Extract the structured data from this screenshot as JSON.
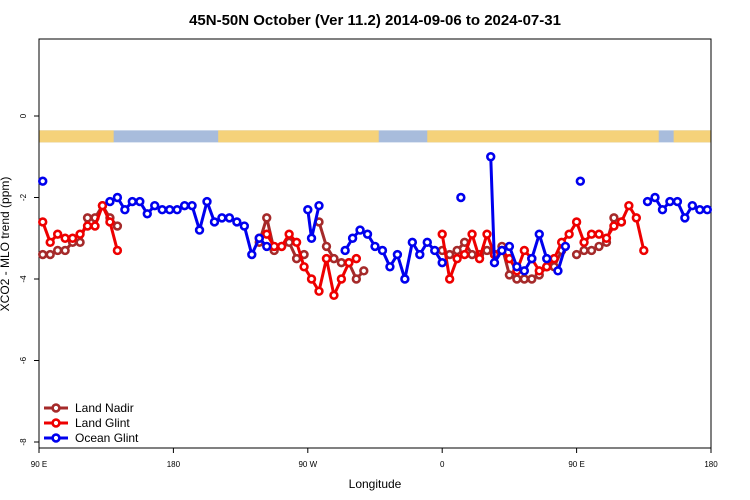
{
  "chart_data": {
    "type": "line",
    "title": "45N-50N October (Ver 11.2)   2014-09-06 to 2024-07-31",
    "xlabel": "Longitude",
    "ylabel": "XCO2 - MLO trend (ppm)",
    "xlim": [
      0,
      180
    ],
    "ylim": [
      -8,
      2
    ],
    "x_ticks": [
      {
        "x": 0,
        "label": "90 E"
      },
      {
        "x": 36,
        "label": "180"
      },
      {
        "x": 72,
        "label": "90 W"
      },
      {
        "x": 108,
        "label": "0"
      },
      {
        "x": 144,
        "label": "90 E"
      },
      {
        "x": 180,
        "label": "180"
      }
    ],
    "y_ticks": [
      -8,
      -6,
      -4,
      -2,
      0
    ],
    "grid": false,
    "legend_position": "bottom-left",
    "land_ocean_strip": {
      "y": -0.5,
      "land_color": "#f5d27a",
      "ocean_color": "#a8bcdc"
    },
    "series": [
      {
        "name": "Land Nadir",
        "color": "#a52a2a",
        "points": [
          [
            1,
            -3.4
          ],
          [
            3,
            -3.4
          ],
          [
            5,
            -3.3
          ],
          [
            7,
            -3.3
          ],
          [
            9,
            -3.1
          ],
          [
            11,
            -3.1
          ],
          [
            13,
            -2.5
          ],
          [
            15,
            -2.5
          ],
          [
            17,
            -2.2
          ],
          [
            19,
            -2.5
          ],
          [
            21,
            -2.7
          ],
          [
            59,
            -3.1
          ],
          [
            61,
            -2.5
          ],
          [
            63,
            -3.3
          ],
          [
            65,
            -3.2
          ],
          [
            67,
            -3.1
          ],
          [
            69,
            -3.5
          ],
          [
            71,
            -3.4
          ],
          [
            75,
            -2.6
          ],
          [
            77,
            -3.2
          ],
          [
            79,
            -3.5
          ],
          [
            81,
            -3.6
          ],
          [
            83,
            -3.6
          ],
          [
            85,
            -4.0
          ],
          [
            87,
            -3.8
          ],
          [
            108,
            -3.3
          ],
          [
            110,
            -3.4
          ],
          [
            112,
            -3.3
          ],
          [
            114,
            -3.1
          ],
          [
            116,
            -3.4
          ],
          [
            118,
            -3.4
          ],
          [
            120,
            -3.3
          ],
          [
            122,
            -3.4
          ],
          [
            124,
            -3.2
          ],
          [
            126,
            -3.9
          ],
          [
            128,
            -4.0
          ],
          [
            130,
            -4.0
          ],
          [
            132,
            -4.0
          ],
          [
            134,
            -3.9
          ],
          [
            136,
            -3.7
          ],
          [
            138,
            -3.7
          ],
          [
            140,
            -3.3
          ],
          [
            144,
            -3.4
          ],
          [
            146,
            -3.3
          ],
          [
            148,
            -3.3
          ],
          [
            150,
            -3.2
          ],
          [
            152,
            -3.1
          ],
          [
            154,
            -2.5
          ],
          [
            156,
            -2.6
          ]
        ]
      },
      {
        "name": "Land Glint",
        "color": "#ee0000",
        "points": [
          [
            1,
            -2.6
          ],
          [
            3,
            -3.1
          ],
          [
            5,
            -2.9
          ],
          [
            7,
            -3.0
          ],
          [
            9,
            -3.0
          ],
          [
            11,
            -2.9
          ],
          [
            13,
            -2.7
          ],
          [
            15,
            -2.7
          ],
          [
            17,
            -2.2
          ],
          [
            19,
            -2.6
          ],
          [
            21,
            -3.3
          ],
          [
            59,
            -3.0
          ],
          [
            61,
            -2.9
          ],
          [
            63,
            -3.2
          ],
          [
            65,
            -3.2
          ],
          [
            67,
            -2.9
          ],
          [
            69,
            -3.1
          ],
          [
            71,
            -3.7
          ],
          [
            73,
            -4.0
          ],
          [
            75,
            -4.3
          ],
          [
            77,
            -3.5
          ],
          [
            79,
            -4.4
          ],
          [
            81,
            -4.0
          ],
          [
            83,
            -3.6
          ],
          [
            85,
            -3.5
          ],
          [
            108,
            -2.9
          ],
          [
            110,
            -4.0
          ],
          [
            112,
            -3.5
          ],
          [
            114,
            -3.4
          ],
          [
            116,
            -2.9
          ],
          [
            118,
            -3.5
          ],
          [
            120,
            -2.9
          ],
          [
            122,
            -3.4
          ],
          [
            124,
            -3.3
          ],
          [
            126,
            -3.5
          ],
          [
            128,
            -3.8
          ],
          [
            130,
            -3.3
          ],
          [
            132,
            -3.5
          ],
          [
            134,
            -3.8
          ],
          [
            136,
            -3.7
          ],
          [
            138,
            -3.5
          ],
          [
            140,
            -3.1
          ],
          [
            142,
            -2.9
          ],
          [
            144,
            -2.6
          ],
          [
            146,
            -3.1
          ],
          [
            148,
            -2.9
          ],
          [
            150,
            -2.9
          ],
          [
            152,
            -3.0
          ],
          [
            154,
            -2.7
          ],
          [
            156,
            -2.6
          ],
          [
            158,
            -2.2
          ],
          [
            160,
            -2.5
          ],
          [
            162,
            -3.3
          ]
        ]
      },
      {
        "name": "Ocean Glint",
        "color": "#0000ee",
        "segments": [
          [
            [
              1,
              -1.6
            ]
          ],
          [
            [
              19,
              -2.1
            ],
            [
              21,
              -2.0
            ],
            [
              23,
              -2.3
            ],
            [
              25,
              -2.1
            ],
            [
              27,
              -2.1
            ],
            [
              29,
              -2.4
            ],
            [
              31,
              -2.2
            ],
            [
              33,
              -2.3
            ],
            [
              35,
              -2.3
            ],
            [
              37,
              -2.3
            ],
            [
              39,
              -2.2
            ],
            [
              41,
              -2.2
            ],
            [
              43,
              -2.8
            ],
            [
              45,
              -2.1
            ],
            [
              47,
              -2.6
            ],
            [
              49,
              -2.5
            ],
            [
              51,
              -2.5
            ],
            [
              53,
              -2.6
            ],
            [
              55,
              -2.7
            ],
            [
              57,
              -3.4
            ],
            [
              59,
              -3.0
            ],
            [
              61,
              -3.2
            ]
          ],
          [
            [
              72,
              -2.3
            ],
            [
              73,
              -3.0
            ],
            [
              75,
              -2.2
            ]
          ],
          [
            [
              82,
              -3.3
            ],
            [
              84,
              -3.0
            ],
            [
              86,
              -2.8
            ],
            [
              88,
              -2.9
            ],
            [
              90,
              -3.2
            ],
            [
              92,
              -3.3
            ],
            [
              94,
              -3.7
            ],
            [
              96,
              -3.4
            ],
            [
              98,
              -4.0
            ],
            [
              100,
              -3.1
            ],
            [
              102,
              -3.4
            ],
            [
              104,
              -3.1
            ],
            [
              106,
              -3.3
            ],
            [
              108,
              -3.6
            ]
          ],
          [
            [
              113,
              -2.0
            ]
          ],
          [
            [
              121,
              -1.0
            ],
            [
              122,
              -3.6
            ],
            [
              124,
              -3.3
            ],
            [
              126,
              -3.2
            ],
            [
              128,
              -3.7
            ],
            [
              130,
              -3.8
            ],
            [
              132,
              -3.5
            ],
            [
              134,
              -2.9
            ],
            [
              136,
              -3.5
            ]
          ],
          [
            [
              139,
              -3.8
            ],
            [
              141,
              -3.2
            ]
          ],
          [
            [
              145,
              -1.6
            ]
          ],
          [
            [
              163,
              -2.1
            ],
            [
              165,
              -2.0
            ],
            [
              167,
              -2.3
            ],
            [
              169,
              -2.1
            ],
            [
              171,
              -2.1
            ],
            [
              173,
              -2.5
            ],
            [
              175,
              -2.2
            ],
            [
              177,
              -2.3
            ],
            [
              179,
              -2.3
            ]
          ]
        ]
      }
    ]
  }
}
